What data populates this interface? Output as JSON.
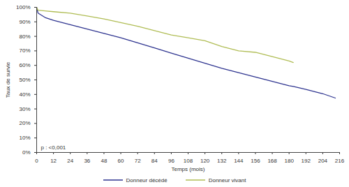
{
  "chart_data": {
    "type": "line",
    "x_label": "Temps (mois)",
    "y_label": "Taux de survie",
    "annotation": "p : <0,001",
    "x": [
      0,
      1,
      6,
      12,
      24,
      36,
      48,
      60,
      72,
      84,
      96,
      108,
      120,
      132,
      144,
      156,
      168,
      180,
      183,
      192,
      204,
      213
    ],
    "series": [
      {
        "name": "Donneur décédé",
        "color": "#2f3590",
        "values": [
          100,
          96,
          93,
          91,
          88,
          85,
          82,
          79,
          75.5,
          72,
          68.5,
          65,
          61.5,
          58,
          55,
          52,
          49,
          46,
          45.5,
          43.5,
          40.5,
          37.5
        ]
      },
      {
        "name": "Donneur vivant",
        "color": "#b0bd55",
        "values": [
          100,
          98,
          97.5,
          97,
          96,
          94,
          92,
          89.5,
          87,
          84,
          81,
          79,
          77,
          73,
          70,
          69,
          66,
          63,
          62,
          null,
          null,
          null
        ]
      }
    ],
    "xlim": [
      0,
      216
    ],
    "xticks": [
      0,
      12,
      24,
      36,
      48,
      60,
      72,
      84,
      96,
      108,
      120,
      132,
      144,
      156,
      168,
      180,
      192,
      204,
      216
    ],
    "ylim": [
      0,
      100
    ],
    "yticks": [
      {
        "value": 0,
        "label": "0%"
      },
      {
        "value": 10,
        "label": "10%"
      },
      {
        "value": 20,
        "label": "20%"
      },
      {
        "value": 30,
        "label": "30%"
      },
      {
        "value": 40,
        "label": "40%"
      },
      {
        "value": 50,
        "label": "50%"
      },
      {
        "value": 60,
        "label": "60%"
      },
      {
        "value": 70,
        "label": "70%"
      },
      {
        "value": 80,
        "label": "80%"
      },
      {
        "value": 90,
        "label": "90%"
      },
      {
        "value": 100,
        "label": "100%"
      }
    ],
    "grid": false,
    "legend": "bottom"
  }
}
